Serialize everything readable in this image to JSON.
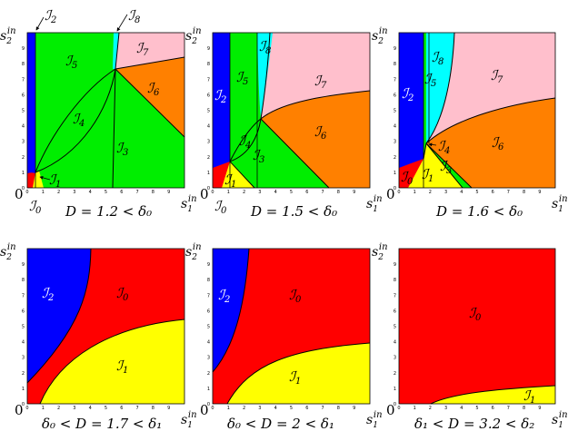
{
  "panels": [
    {
      "caption": "D = 1.2 < δ₀",
      "labels": [
        "I2",
        "I8",
        "I5",
        "I7",
        "I6",
        "I4",
        "I3",
        "I1",
        "I0"
      ]
    },
    {
      "caption": "D = 1.5 < δ₀",
      "labels": [
        "I8",
        "I2",
        "I5",
        "I7",
        "I4",
        "I6",
        "I3",
        "I1",
        "I0"
      ]
    },
    {
      "caption": "D = 1.6 < δ₀",
      "labels": [
        "I8",
        "I5",
        "I2",
        "I7",
        "I4",
        "I6",
        "I3",
        "I1",
        "I0"
      ]
    },
    {
      "caption": "δ₀ < D = 1.7 < δ₁",
      "labels": [
        "I2",
        "I0",
        "I1"
      ]
    },
    {
      "caption": "δ₀ < D = 2 < δ₁",
      "labels": [
        "I2",
        "I0",
        "I1"
      ]
    },
    {
      "caption": "δ₁ < D = 3.2 < δ₂",
      "labels": [
        "I0",
        "I1"
      ]
    }
  ],
  "axis": {
    "x_label": "s",
    "x_sub": "1",
    "x_sup": "in",
    "y_label": "s",
    "y_sub": "2",
    "y_sup": "in",
    "origin": "0",
    "x_ticks": [
      "0",
      "1",
      "2",
      "3",
      "4",
      "5",
      "6",
      "7",
      "8",
      "9"
    ],
    "y_ticks": [
      "0",
      "1",
      "2",
      "3",
      "4",
      "5",
      "6",
      "7",
      "8",
      "9"
    ]
  },
  "colors": {
    "I0": "#ff0000",
    "I1": "#ffff00",
    "I2": "#0000ff",
    "I3": "#00ee00",
    "I4": "#00ee00",
    "I5": "#00ee00",
    "I6": "#ff8000",
    "I7": "#ffbfcc",
    "I8": "#00ffff"
  }
}
